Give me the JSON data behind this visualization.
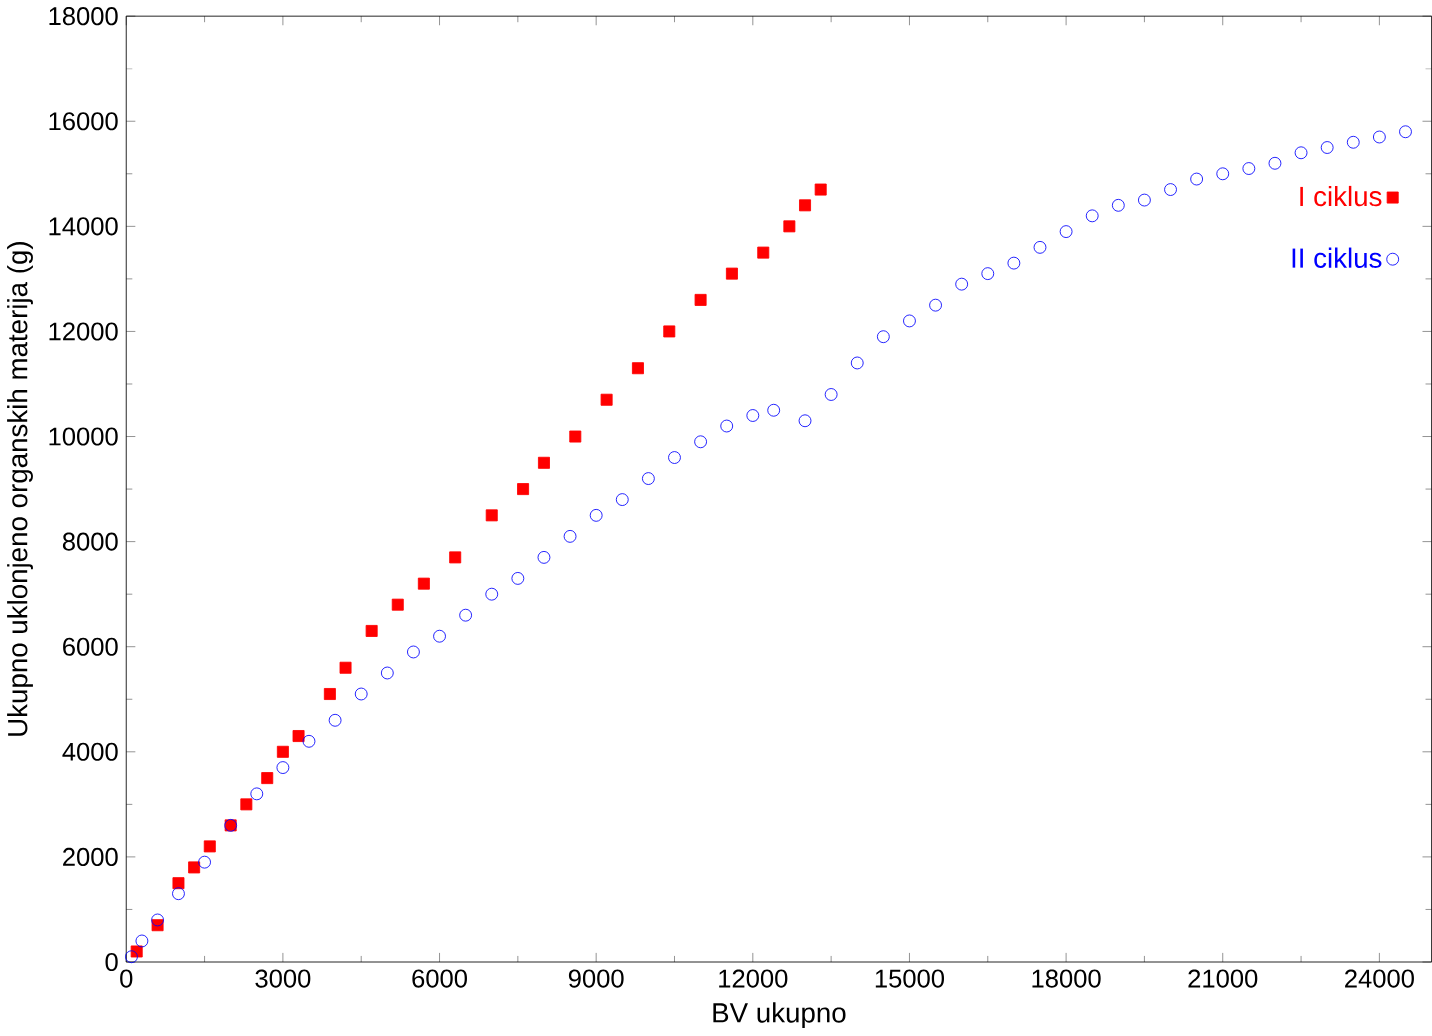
{
  "chart_data": {
    "type": "scatter",
    "xlabel": "BV ukupno",
    "ylabel": "Ukupno uklonjeno organskih materija (g)",
    "xlim": [
      0,
      25000
    ],
    "ylim": [
      0,
      18000
    ],
    "xticks": [
      0,
      3000,
      6000,
      9000,
      12000,
      15000,
      18000,
      21000,
      24000
    ],
    "yticks": [
      0,
      2000,
      4000,
      6000,
      8000,
      10000,
      12000,
      14000,
      16000,
      18000
    ],
    "grid": false,
    "legend": "top right",
    "series": [
      {
        "name": "I ciklus",
        "color": "#ff0000",
        "marker": "square",
        "x": [
          200,
          600,
          1000,
          1300,
          1600,
          2000,
          2300,
          2700,
          3000,
          3300,
          3900,
          4200,
          4700,
          5200,
          5700,
          6300,
          7000,
          7600,
          8000,
          8600,
          9200,
          9800,
          10400,
          11000,
          11600,
          12200,
          12700,
          13000,
          13300
        ],
        "values": [
          200,
          700,
          1500,
          1800,
          2200,
          2600,
          3000,
          3500,
          4000,
          4300,
          5100,
          5600,
          6300,
          6800,
          7200,
          7700,
          8500,
          9000,
          9500,
          10000,
          10700,
          11300,
          12000,
          12600,
          13100,
          13500,
          14000,
          14400,
          14700
        ]
      },
      {
        "name": "II ciklus",
        "color": "#0000ff",
        "marker": "circle",
        "x": [
          100,
          300,
          600,
          1000,
          1500,
          2000,
          2500,
          3000,
          3500,
          4000,
          4500,
          5000,
          5500,
          6000,
          6500,
          7000,
          7500,
          8000,
          8500,
          9000,
          9500,
          10000,
          10500,
          11000,
          11500,
          12000,
          12400,
          13000,
          13500,
          14000,
          14500,
          15000,
          15500,
          16000,
          16500,
          17000,
          17500,
          18000,
          18500,
          19000,
          19500,
          20000,
          20500,
          21000,
          21500,
          22000,
          22500,
          23000,
          23500,
          24000,
          24500
        ],
        "values": [
          100,
          400,
          800,
          1300,
          1900,
          2600,
          3200,
          3700,
          4200,
          4600,
          5100,
          5500,
          5900,
          6200,
          6600,
          7000,
          7300,
          7700,
          8100,
          8500,
          8800,
          9200,
          9600,
          9900,
          10200,
          10400,
          10500,
          10300,
          10800,
          11400,
          11900,
          12200,
          12500,
          12900,
          13100,
          13300,
          13600,
          13900,
          14200,
          14400,
          14500,
          14700,
          14900,
          15000,
          15100,
          15200,
          15400,
          15500,
          15600,
          15700,
          15800
        ]
      }
    ]
  }
}
